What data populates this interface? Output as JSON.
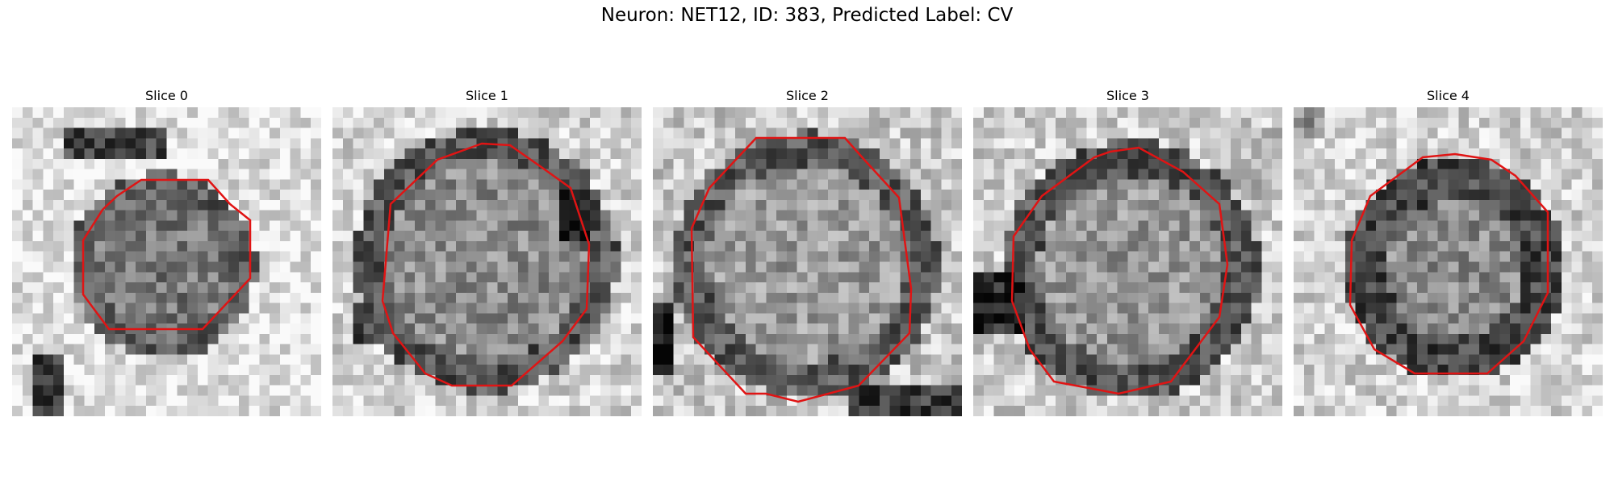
{
  "figure": {
    "title": "Neuron: NET12, ID: 383, Predicted Label: CV"
  },
  "colors": {
    "contour": "#e01414",
    "background": "#ffffff"
  },
  "slices": [
    {
      "title": "Slice 0",
      "image": "grayscale-em-crop",
      "contour": "red-outline"
    },
    {
      "title": "Slice 1",
      "image": "grayscale-em-crop",
      "contour": "red-outline"
    },
    {
      "title": "Slice 2",
      "image": "grayscale-em-crop",
      "contour": "red-outline"
    },
    {
      "title": "Slice 3",
      "image": "grayscale-em-crop",
      "contour": "red-outline"
    },
    {
      "title": "Slice 4",
      "image": "grayscale-em-crop",
      "contour": "red-outline"
    }
  ]
}
